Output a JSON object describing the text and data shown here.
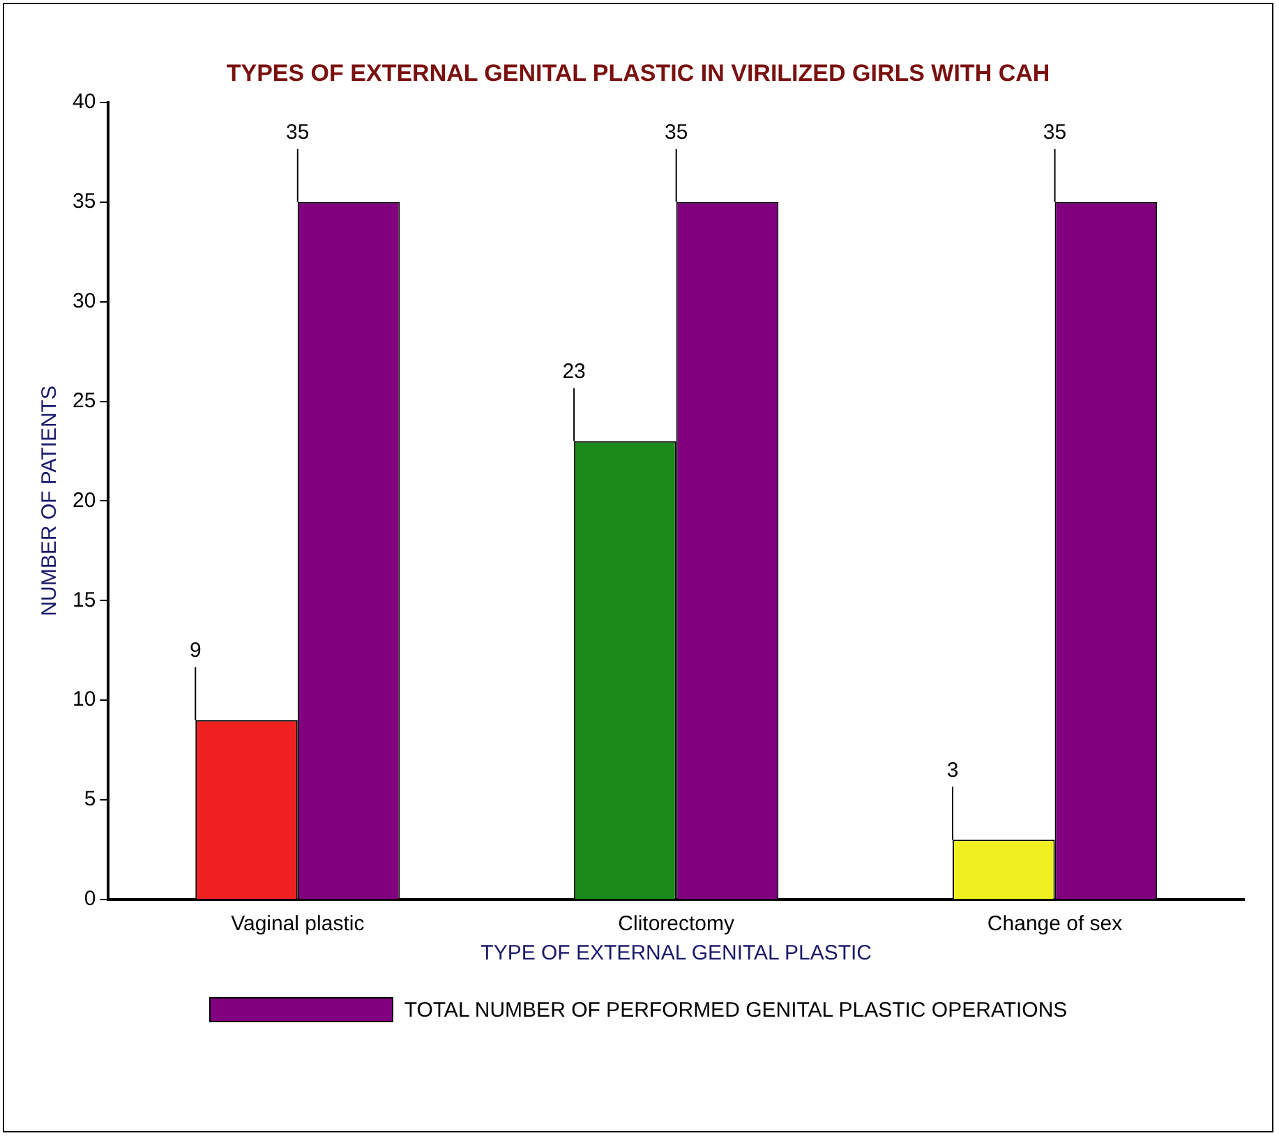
{
  "chart_data": {
    "type": "bar",
    "title": "TYPES OF EXTERNAL GENITAL PLASTIC IN VIRILIZED GIRLS WITH CAH",
    "xlabel": "TYPE OF EXTERNAL GENITAL PLASTIC",
    "ylabel": "NUMBER OF PATIENTS",
    "categories": [
      "Vaginal plastic",
      "Clitorectomy",
      "Change of sex"
    ],
    "series": [
      {
        "colors": [
          "#ee2020",
          "#1a8a1a",
          "#f0f020"
        ],
        "values": [
          9,
          23,
          3
        ]
      },
      {
        "name": "TOTAL NUMBER OF PERFORMED GENITAL PLASTIC OPERATIONS",
        "color": "#800080",
        "values": [
          35,
          35,
          35
        ]
      }
    ],
    "ylim": [
      0,
      40
    ],
    "yticks": [
      0,
      5,
      10,
      15,
      20,
      25,
      30,
      35,
      40
    ],
    "grid": false,
    "legend": "bottom",
    "data_labels": true
  }
}
